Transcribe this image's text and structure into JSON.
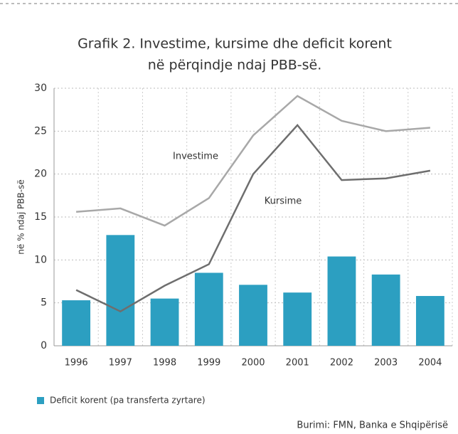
{
  "chart_data": {
    "type": "bar",
    "title": "Grafik 2. Investime, kursime dhe deficit korent",
    "subtitle": "në përqindje ndaj PBB-së.",
    "y_label": "në % ndaj PBB-së",
    "source": "Burimi: FMN, Banka e Shqipërisë",
    "categories": [
      "1996",
      "1997",
      "1998",
      "1999",
      "2000",
      "2001",
      "2002",
      "2003",
      "2004"
    ],
    "series": [
      {
        "name": "Deficit korent (pa transferta zyrtare)",
        "type": "bar",
        "color": "#2c9fc1",
        "values": [
          5.3,
          12.9,
          5.5,
          8.5,
          7.1,
          6.2,
          10.4,
          8.3,
          5.8
        ]
      },
      {
        "name": "Investime",
        "type": "line",
        "color": "#a8a8a8",
        "values": [
          15.6,
          16.0,
          14.0,
          17.2,
          24.5,
          29.1,
          26.2,
          25.0,
          25.4
        ]
      },
      {
        "name": "Kursime",
        "type": "line",
        "color": "#6e6e6e",
        "values": [
          6.5,
          4.0,
          7.0,
          9.5,
          20.0,
          25.7,
          19.3,
          19.5,
          20.4
        ]
      }
    ],
    "ylim": [
      0,
      30
    ],
    "yticks": [
      0,
      5,
      10,
      15,
      20,
      25,
      30
    ],
    "grid": true
  }
}
